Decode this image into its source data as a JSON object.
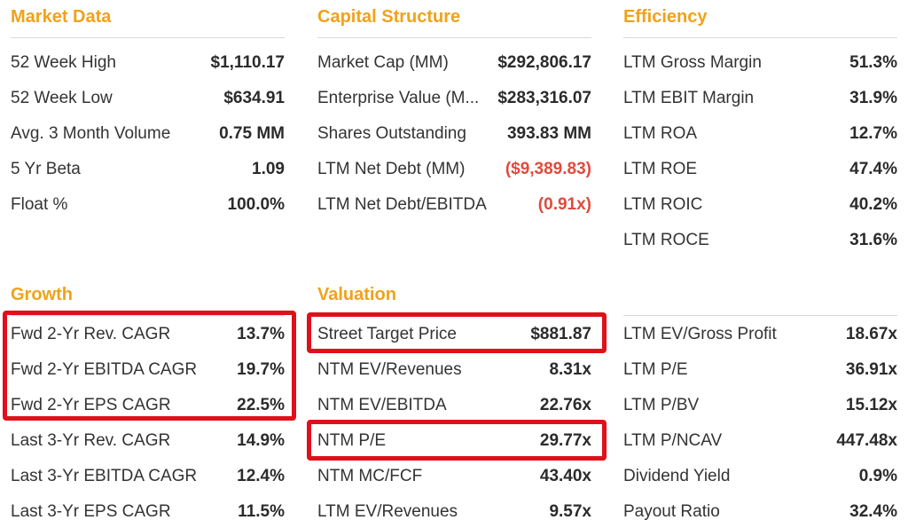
{
  "market_data": {
    "title": "Market Data",
    "rows": [
      {
        "label": "52 Week High",
        "value": "$1,110.17"
      },
      {
        "label": "52 Week Low",
        "value": "$634.91"
      },
      {
        "label": "Avg. 3 Month Volume",
        "value": "0.75 MM"
      },
      {
        "label": "5 Yr Beta",
        "value": "1.09"
      },
      {
        "label": "Float %",
        "value": "100.0%"
      }
    ]
  },
  "capital_structure": {
    "title": "Capital Structure",
    "rows": [
      {
        "label": "Market Cap (MM)",
        "value": "$292,806.17"
      },
      {
        "label": "Enterprise Value (M...",
        "value": "$283,316.07"
      },
      {
        "label": "Shares Outstanding",
        "value": "393.83 MM"
      },
      {
        "label": "LTM Net Debt (MM)",
        "value": "($9,389.83)"
      },
      {
        "label": "LTM Net Debt/EBITDA",
        "value": "(0.91x)"
      }
    ]
  },
  "efficiency": {
    "title": "Efficiency",
    "rows": [
      {
        "label": "LTM Gross Margin",
        "value": "51.3%"
      },
      {
        "label": "LTM EBIT Margin",
        "value": "31.9%"
      },
      {
        "label": "LTM ROA",
        "value": "12.7%"
      },
      {
        "label": "LTM ROE",
        "value": "47.4%"
      },
      {
        "label": "LTM ROIC",
        "value": "40.2%"
      },
      {
        "label": "LTM ROCE",
        "value": "31.6%"
      }
    ]
  },
  "growth": {
    "title": "Growth",
    "rows": [
      {
        "label": "Fwd 2-Yr Rev. CAGR",
        "value": "13.7%"
      },
      {
        "label": "Fwd 2-Yr EBITDA CAGR",
        "value": "19.7%"
      },
      {
        "label": "Fwd 2-Yr EPS CAGR",
        "value": "22.5%"
      },
      {
        "label": "Last 3-Yr Rev. CAGR",
        "value": "14.9%"
      },
      {
        "label": "Last 3-Yr EBITDA CAGR",
        "value": "12.4%"
      },
      {
        "label": "Last 3-Yr EPS CAGR",
        "value": "11.5%"
      }
    ]
  },
  "valuation": {
    "title": "Valuation",
    "rows": [
      {
        "label": "Street Target Price",
        "value": "$881.87"
      },
      {
        "label": "NTM EV/Revenues",
        "value": "8.31x"
      },
      {
        "label": "NTM EV/EBITDA",
        "value": "22.76x"
      },
      {
        "label": "NTM P/E",
        "value": "29.77x"
      },
      {
        "label": "NTM MC/FCF",
        "value": "43.40x"
      },
      {
        "label": "LTM EV/Revenues",
        "value": "9.57x"
      }
    ]
  },
  "valuation_2": {
    "rows": [
      {
        "label": "LTM EV/Gross Profit",
        "value": "18.67x"
      },
      {
        "label": "LTM P/E",
        "value": "36.91x"
      },
      {
        "label": "LTM P/BV",
        "value": "15.12x"
      },
      {
        "label": "LTM P/NCAV",
        "value": "447.48x"
      },
      {
        "label": "Dividend Yield",
        "value": "0.9%"
      },
      {
        "label": "Payout Ratio",
        "value": "32.4%"
      }
    ]
  },
  "colors": {
    "section_title": "#f0a21a",
    "negative_value": "#e04a3c",
    "highlight_box": "#e0101a"
  }
}
